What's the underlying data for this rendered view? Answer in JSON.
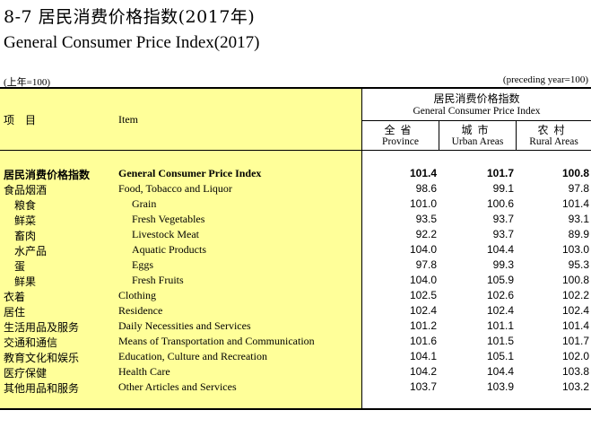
{
  "title_cn": "8-7 居民消费价格指数(2017年)",
  "title_en": "General Consumer Price Index(2017)",
  "unit_left": "(上年=100)",
  "unit_right": "(preceding year=100)",
  "header": {
    "item_cn": "项　目",
    "item_en": "Item",
    "group_cn": "居民消费价格指数",
    "group_en": "General Consumer Price Index",
    "columns": [
      {
        "cn": "全省",
        "en": "Province"
      },
      {
        "cn": "城市",
        "en": "Urban Areas"
      },
      {
        "cn": "农村",
        "en": "Rural Areas"
      }
    ]
  },
  "rows": [
    {
      "cn": "居民消费价格指数",
      "en": "General Consumer Price Index",
      "province": "101.4",
      "urban": "101.7",
      "rural": "100.8"
    },
    {
      "cn": "食品烟酒",
      "en": "Food, Tobacco and Liquor",
      "province": "98.6",
      "urban": "99.1",
      "rural": "97.8"
    },
    {
      "cn": "粮食",
      "en": "Grain",
      "province": "101.0",
      "urban": "100.6",
      "rural": "101.4"
    },
    {
      "cn": "鲜菜",
      "en": "Fresh Vegetables",
      "province": "93.5",
      "urban": "93.7",
      "rural": "93.1"
    },
    {
      "cn": "畜肉",
      "en": "Livestock Meat",
      "province": "92.2",
      "urban": "93.7",
      "rural": "89.9"
    },
    {
      "cn": "水产品",
      "en": "Aquatic Products",
      "province": "104.0",
      "urban": "104.4",
      "rural": "103.0"
    },
    {
      "cn": "蛋",
      "en": "Eggs",
      "province": "97.8",
      "urban": "99.3",
      "rural": "95.3"
    },
    {
      "cn": "鲜果",
      "en": "Fresh Fruits",
      "province": "104.0",
      "urban": "105.9",
      "rural": "100.8"
    },
    {
      "cn": "衣着",
      "en": "Clothing",
      "province": "102.5",
      "urban": "102.6",
      "rural": "102.2"
    },
    {
      "cn": "居住",
      "en": "Residence",
      "province": "102.4",
      "urban": "102.4",
      "rural": "102.4"
    },
    {
      "cn": "生活用品及服务",
      "en": "Daily Necessities and Services",
      "province": "101.2",
      "urban": "101.1",
      "rural": "101.4"
    },
    {
      "cn": "交通和通信",
      "en": "Means of Transportation and Communication",
      "province": "101.6",
      "urban": "101.5",
      "rural": "101.7"
    },
    {
      "cn": "教育文化和娱乐",
      "en": "Education, Culture and Recreation",
      "province": "104.1",
      "urban": "105.1",
      "rural": "102.0"
    },
    {
      "cn": "医疗保健",
      "en": "Health Care",
      "province": "104.2",
      "urban": "104.4",
      "rural": "103.8"
    },
    {
      "cn": "其他用品和服务",
      "en": "Other Articles and Services",
      "province": "103.7",
      "urban": "103.9",
      "rural": "103.2"
    }
  ]
}
